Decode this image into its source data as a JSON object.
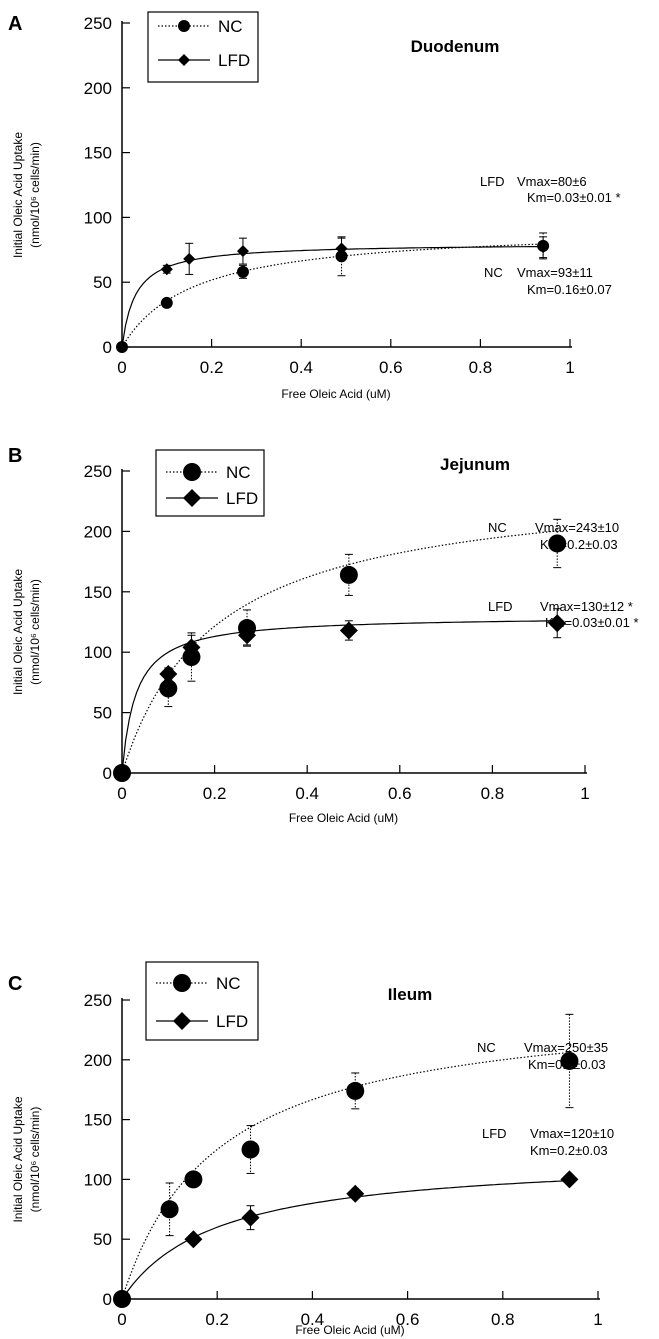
{
  "chart_data": [
    {
      "type": "scatter",
      "panel_label": "A",
      "title": "Duodenum",
      "xlabel": "Free Oleic Acid (uM)",
      "ylabel_line1": "Initial Oleic Acid Uptake",
      "ylabel_line2": "(nmol/10⁶ cells/min)",
      "xlim": [
        0,
        1
      ],
      "ylim": [
        0,
        250
      ],
      "x_ticks": [
        "0",
        "0.2",
        "0.4",
        "0.6",
        "0.8",
        "1"
      ],
      "y_ticks": [
        "0",
        "50",
        "100",
        "150",
        "200",
        "250"
      ],
      "legend": [
        "NC",
        "LFD"
      ],
      "series": [
        {
          "name": "NC",
          "marker": "circle",
          "line": "dotted",
          "x": [
            0,
            0.1,
            0.27,
            0.49,
            0.94
          ],
          "y": [
            0,
            34,
            58,
            70,
            78
          ],
          "err": [
            0,
            3,
            5,
            15,
            10
          ],
          "fit": {
            "vmax": 93,
            "km": 0.16
          }
        },
        {
          "name": "LFD",
          "marker": "diamond",
          "line": "solid",
          "x": [
            0,
            0.1,
            0.15,
            0.27,
            0.49,
            0.94
          ],
          "y": [
            0,
            60,
            68,
            74,
            76,
            77
          ],
          "err": [
            0,
            3,
            12,
            10,
            8,
            8
          ],
          "fit": {
            "vmax": 80,
            "km": 0.03
          }
        }
      ],
      "annotations": [
        {
          "group": "LFD",
          "vmax": "Vmax=80±6",
          "km": "Km=0.03±0.01",
          "star_vmax": "",
          "star_km": "*"
        },
        {
          "group": "NC",
          "vmax": "Vmax=93±11",
          "km": "Km=0.16±0.07",
          "star_vmax": "",
          "star_km": ""
        }
      ]
    },
    {
      "type": "scatter",
      "panel_label": "B",
      "title": "Jejunum",
      "xlabel": "Free Oleic Acid (uM)",
      "ylabel_line1": "Initial Oleic Acid Uptake",
      "ylabel_line2": "(nmol/10⁶ cells/min)",
      "xlim": [
        0,
        1
      ],
      "ylim": [
        0,
        250
      ],
      "x_ticks": [
        "0",
        "0.2",
        "0.4",
        "0.6",
        "0.8",
        "1"
      ],
      "y_ticks": [
        "0",
        "50",
        "100",
        "150",
        "200",
        "250"
      ],
      "legend": [
        "NC",
        "LFD"
      ],
      "series": [
        {
          "name": "NC",
          "marker": "circle",
          "line": "dotted",
          "x": [
            0,
            0.1,
            0.15,
            0.27,
            0.49,
            0.94
          ],
          "y": [
            0,
            70,
            96,
            120,
            164,
            190
          ],
          "err": [
            0,
            15,
            20,
            15,
            17,
            20
          ],
          "fit": {
            "vmax": 243,
            "km": 0.2
          }
        },
        {
          "name": "LFD",
          "marker": "diamond",
          "line": "solid",
          "x": [
            0,
            0.1,
            0.15,
            0.27,
            0.49,
            0.94
          ],
          "y": [
            0,
            82,
            104,
            114,
            118,
            124
          ],
          "err": [
            0,
            5,
            10,
            8,
            8,
            12
          ],
          "fit": {
            "vmax": 130,
            "km": 0.03
          }
        }
      ],
      "annotations": [
        {
          "group": "NC",
          "vmax": "Vmax=243±10",
          "km": "Km=0.2±0.03",
          "star_vmax": "",
          "star_km": ""
        },
        {
          "group": "LFD",
          "vmax": "Vmax=130±12",
          "km": "Km=0.03±0.01",
          "star_vmax": "*",
          "star_km": "*"
        }
      ]
    },
    {
      "type": "scatter",
      "panel_label": "C",
      "title": "Ileum",
      "xlabel": "Free Oleic Acid (uM)",
      "ylabel_line1": "Initial Oleic Acid Uptake",
      "ylabel_line2": "(nmol/10⁶ cells/min)",
      "xlim": [
        0,
        1
      ],
      "ylim": [
        0,
        250
      ],
      "x_ticks": [
        "0",
        "0.2",
        "0.4",
        "0.6",
        "0.8",
        "1"
      ],
      "y_ticks": [
        "0",
        "50",
        "100",
        "150",
        "200",
        "250"
      ],
      "legend": [
        "NC",
        "LFD"
      ],
      "series": [
        {
          "name": "NC",
          "marker": "circle",
          "line": "dotted",
          "x": [
            0,
            0.1,
            0.15,
            0.27,
            0.49,
            0.94
          ],
          "y": [
            0,
            75,
            100,
            125,
            174,
            199
          ],
          "err": [
            0,
            22,
            3,
            20,
            15,
            39
          ],
          "fit": {
            "vmax": 250,
            "km": 0.2
          }
        },
        {
          "name": "LFD",
          "marker": "diamond",
          "line": "solid",
          "x": [
            0,
            0.15,
            0.27,
            0.49,
            0.94
          ],
          "y": [
            0,
            50,
            68,
            88,
            100
          ],
          "err": [
            0,
            2,
            10,
            2,
            2
          ],
          "fit": {
            "vmax": 120,
            "km": 0.2
          }
        }
      ],
      "annotations": [
        {
          "group": "NC",
          "vmax": "Vmax=250±35",
          "km": "Km=0.2±0.03",
          "star_vmax": "",
          "star_km": ""
        },
        {
          "group": "LFD",
          "vmax": "Vmax=120±10",
          "km": "Km=0.2±0.03",
          "star_vmax": "",
          "star_km": ""
        }
      ]
    }
  ]
}
